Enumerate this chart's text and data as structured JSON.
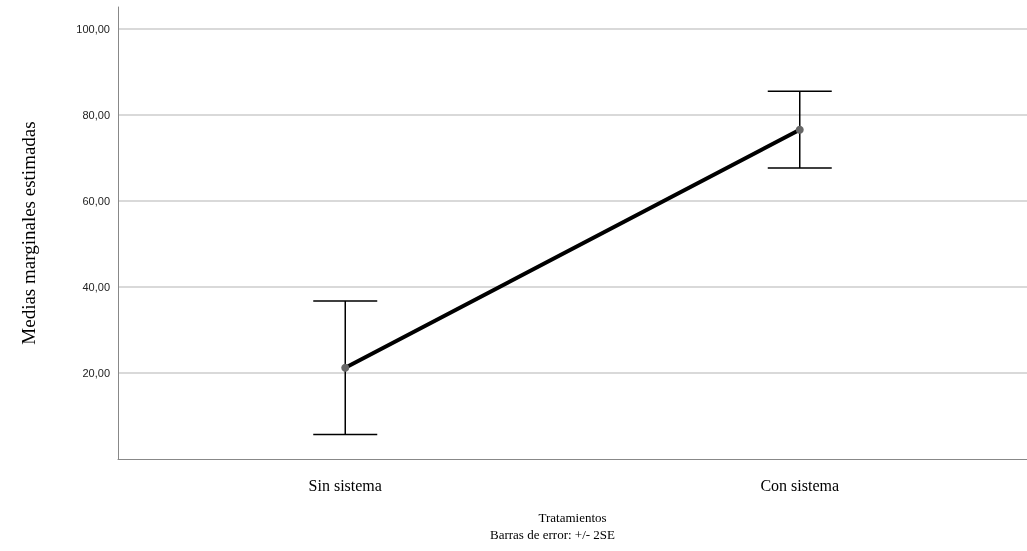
{
  "chart_data": {
    "type": "line",
    "xlabel": "Tratamientos",
    "ylabel": "Medias marginales estimadas",
    "annotations": [
      "Barras de error: +/- 2SE"
    ],
    "categories": [
      "Sin sistema",
      "Con sistema"
    ],
    "series": [
      {
        "color": "#000000",
        "values": [
          21.2,
          76.5
        ],
        "errors": [
          15.5,
          8.9
        ]
      }
    ],
    "ylim": [
      0,
      105
    ],
    "yticks": [
      {
        "value": 20,
        "label": "20,00"
      },
      {
        "value": 40,
        "label": "40,00"
      },
      {
        "value": 60,
        "label": "60,00"
      },
      {
        "value": 80,
        "label": "80,00"
      },
      {
        "value": 100,
        "label": "100,00"
      }
    ],
    "grid": "y",
    "marker": "circle",
    "line_style": "solid"
  }
}
